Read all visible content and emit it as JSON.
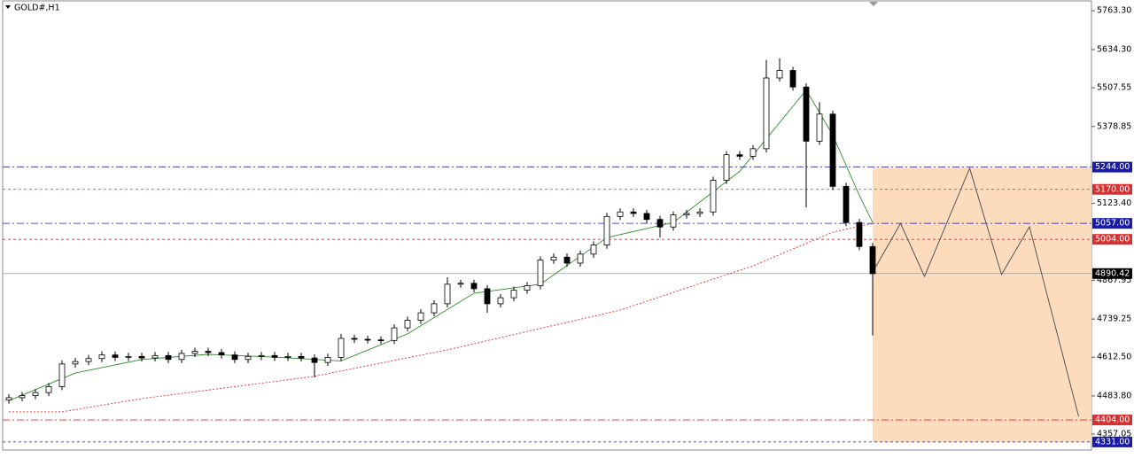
{
  "chart_data": {
    "type": "candlestick",
    "title": "GOLD#,H1",
    "open": [
      4470,
      4478,
      4485,
      4495,
      4515,
      4590,
      4598,
      4608,
      4620,
      4612,
      4615,
      4610,
      4618,
      4605,
      4625,
      4632,
      4628,
      4620,
      4605,
      4615,
      4618,
      4612,
      4615,
      4610,
      4595,
      4612,
      4675,
      4672,
      4670,
      4668,
      4710,
      4735,
      4760,
      4790,
      4855,
      4858,
      4840,
      4790,
      4810,
      4835,
      4850,
      4935,
      4945,
      4925,
      4955,
      4985,
      5080,
      5095,
      5090,
      5070,
      5045,
      5085,
      5090,
      5095,
      5200,
      5285,
      5280,
      5305,
      5540,
      5565,
      5510,
      5330,
      5420,
      5180,
      5060,
      4980
    ],
    "high": [
      4490,
      4497,
      4507,
      4527,
      4602,
      4610,
      4620,
      4632,
      4632,
      4627,
      4627,
      4630,
      4630,
      4637,
      4644,
      4644,
      4640,
      4632,
      4627,
      4630,
      4630,
      4627,
      4627,
      4622,
      4624,
      4690,
      4687,
      4684,
      4682,
      4722,
      4747,
      4772,
      4802,
      4878,
      4870,
      4870,
      4852,
      4822,
      4847,
      4862,
      4947,
      4957,
      4957,
      4967,
      4997,
      5092,
      5107,
      5107,
      5102,
      5082,
      5097,
      5102,
      5107,
      5212,
      5297,
      5297,
      5317,
      5600,
      5605,
      5577,
      5522,
      5460,
      5432,
      5192,
      5072,
      4992
    ],
    "low": [
      4458,
      4466,
      4473,
      4483,
      4503,
      4578,
      4586,
      4596,
      4600,
      4600,
      4598,
      4598,
      4593,
      4593,
      4613,
      4616,
      4608,
      4593,
      4593,
      4603,
      4600,
      4600,
      4598,
      4545,
      4583,
      4600,
      4660,
      4658,
      4656,
      4656,
      4698,
      4723,
      4748,
      4778,
      4843,
      4828,
      4760,
      4778,
      4798,
      4823,
      4838,
      4923,
      4913,
      4913,
      4943,
      4973,
      5068,
      5078,
      5058,
      5010,
      5033,
      5073,
      5078,
      5083,
      5188,
      5268,
      5268,
      5293,
      5528,
      5498,
      5110,
      5318,
      5168,
      5048,
      4968,
      4685
    ],
    "close": [
      4478,
      4485,
      4495,
      4515,
      4590,
      4598,
      4608,
      4620,
      4612,
      4615,
      4610,
      4618,
      4605,
      4625,
      4632,
      4628,
      4620,
      4605,
      4615,
      4618,
      4612,
      4615,
      4610,
      4595,
      4612,
      4675,
      4672,
      4670,
      4668,
      4710,
      4735,
      4760,
      4790,
      4855,
      4858,
      4840,
      4790,
      4810,
      4835,
      4850,
      4935,
      4945,
      4925,
      4955,
      4985,
      5080,
      5095,
      5090,
      5070,
      5045,
      5085,
      5090,
      5095,
      5200,
      5285,
      5280,
      5305,
      5540,
      5565,
      5510,
      5330,
      5420,
      5180,
      5060,
      4980,
      4890
    ],
    "ylim": [
      4313,
      5799
    ],
    "yticks": [
      {
        "value": 5763.3,
        "label": "5763.30"
      },
      {
        "value": 5634.3,
        "label": "5634.30"
      },
      5507.55,
      5378.85,
      {
        "value": 5123.4,
        "label": "5123.40"
      },
      4867.95,
      4739.25,
      {
        "value": 4612.5,
        "label": "4612.50"
      },
      {
        "value": 4483.8,
        "label": "4483.80"
      },
      4357.05
    ],
    "moving_averages": [
      {
        "color": "#2e8b2e",
        "dashed": false,
        "x": [
          0,
          5,
          10,
          15,
          20,
          25,
          30,
          35,
          40,
          45,
          50,
          55,
          60,
          62,
          64,
          65
        ],
        "values": [
          4468,
          4560,
          4605,
          4622,
          4613,
          4600,
          4690,
          4825,
          4855,
          5010,
          5060,
          5230,
          5500,
          5350,
          5150,
          5060
        ]
      },
      {
        "color": "#e03030",
        "dashed": true,
        "x": [
          0,
          4,
          10,
          23,
          33,
          46,
          56,
          62,
          65
        ],
        "values": [
          4431,
          4431,
          4475,
          4549,
          4637,
          4769,
          4916,
          5028,
          5057
        ]
      }
    ],
    "levels": {
      "values": [
        5244,
        5170,
        5057,
        5004,
        4404,
        4331
      ],
      "value_labels": [
        "5244.00",
        "5170.00",
        "5057.00",
        "5004.00",
        "4404.00",
        "4331.00"
      ],
      "colors": [
        "#1a1aa8",
        "#d83030",
        "#1a1aa8",
        "#d83030",
        "#d83030",
        "#1a1aa8"
      ]
    },
    "current_price": {
      "value": 4890.42,
      "color": "#000000"
    },
    "zone": {
      "x_start": 65,
      "top": 5244,
      "bottom": 4331,
      "color": "#fcdcbc"
    },
    "projection": {
      "color": "#555555",
      "x": [
        65.2,
        67.1,
        68.9,
        72.3,
        74.7,
        76.8,
        80.5
      ],
      "values": [
        4910,
        5057,
        4881,
        5240,
        4887,
        5046,
        4416
      ]
    }
  }
}
